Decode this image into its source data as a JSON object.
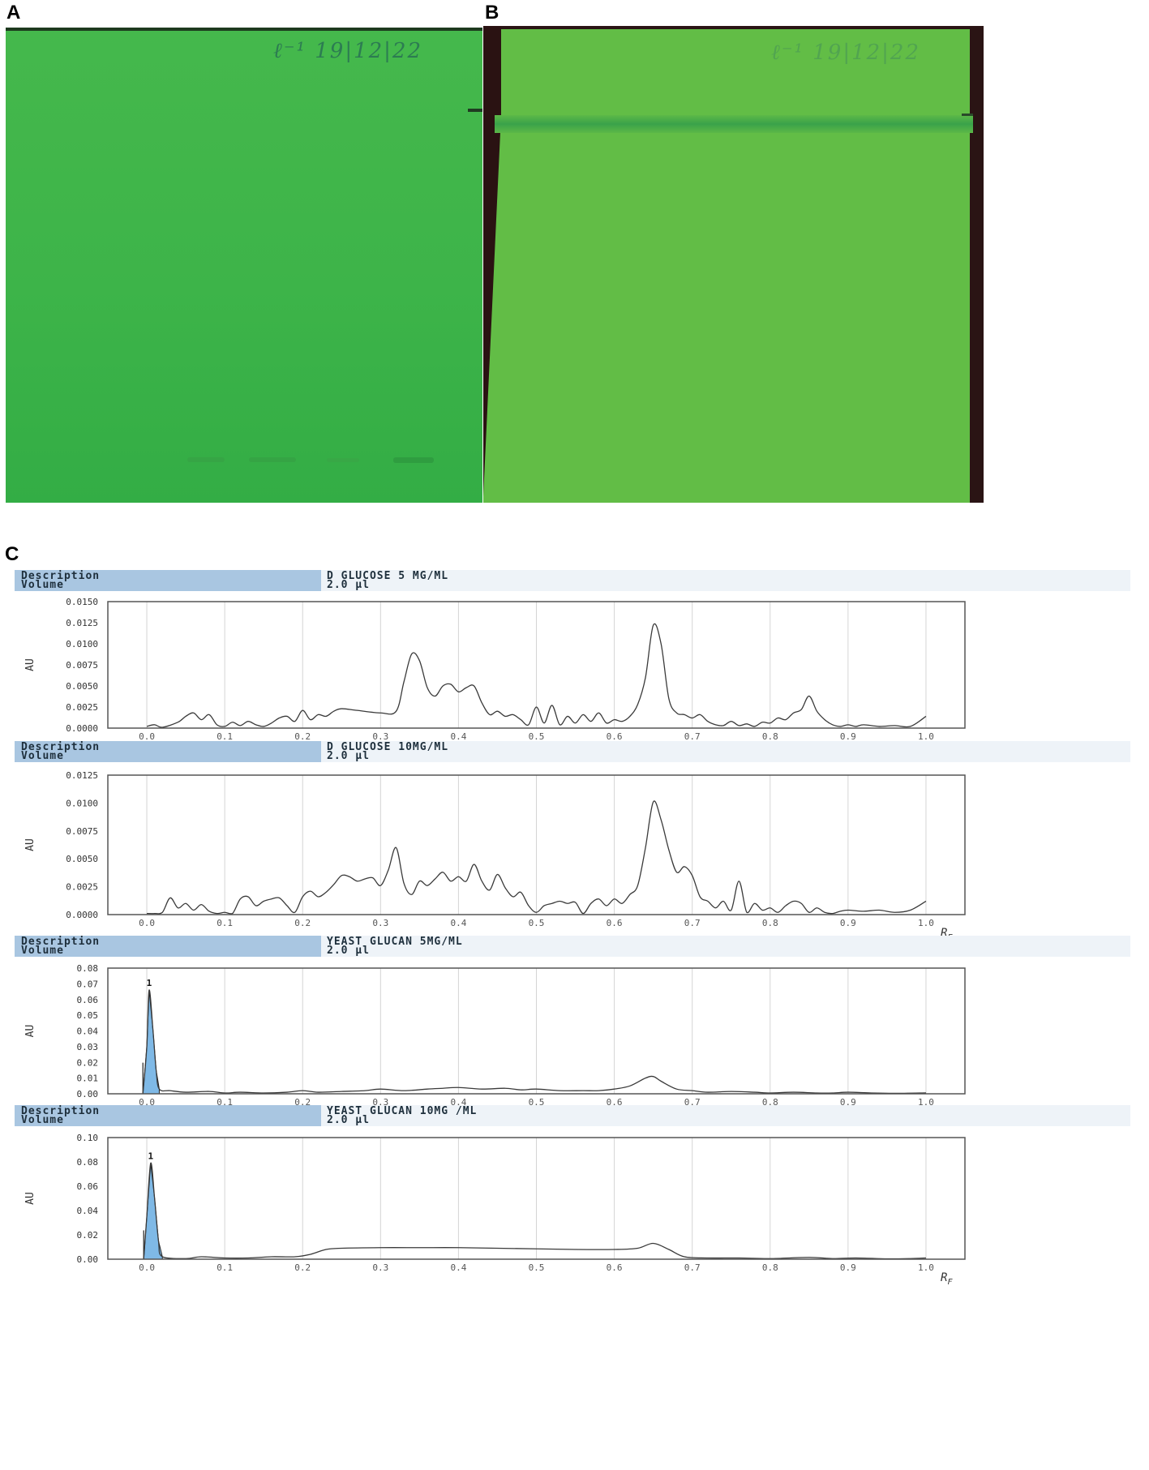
{
  "panels": {
    "a": {
      "label": "A",
      "note": "ℓ⁻¹ 19|12|22"
    },
    "b": {
      "label": "B",
      "note": "ℓ⁻¹ 19|12|22"
    },
    "c": {
      "label": "C"
    }
  },
  "colors": {
    "plate_a": "#3cb44a",
    "plate_b": "#62bd46",
    "peak_fill": "#7fb9e6",
    "trace": "#3a3a3a"
  },
  "chart_data": [
    {
      "type": "line",
      "description_key": "Description",
      "volume_key": "Volume",
      "description": "D GLUCOSE 5 MG/ML",
      "volume": "2.0 µl",
      "ylabel": "AU",
      "xlabel": "R",
      "ylim": [
        0,
        0.015
      ],
      "yticks": [
        "0.0000",
        "0.0025",
        "0.0050",
        "0.0075",
        "0.0100",
        "0.0125",
        "0.0150"
      ],
      "xticks": [
        "0.0",
        "0.1",
        "0.2",
        "0.3",
        "0.4",
        "0.5",
        "0.6",
        "0.7",
        "0.8",
        "0.9",
        "1.0"
      ],
      "xlim": [
        -0.05,
        1.05
      ],
      "points": [
        [
          0.0,
          0.0002
        ],
        [
          0.01,
          0.0004
        ],
        [
          0.02,
          0.0001
        ],
        [
          0.04,
          0.0007
        ],
        [
          0.05,
          0.0014
        ],
        [
          0.06,
          0.0018
        ],
        [
          0.07,
          0.001
        ],
        [
          0.08,
          0.0016
        ],
        [
          0.09,
          0.0004
        ],
        [
          0.1,
          0.0002
        ],
        [
          0.11,
          0.0007
        ],
        [
          0.12,
          0.0003
        ],
        [
          0.13,
          0.0008
        ],
        [
          0.14,
          0.0004
        ],
        [
          0.15,
          0.0002
        ],
        [
          0.16,
          0.0006
        ],
        [
          0.17,
          0.0012
        ],
        [
          0.18,
          0.0014
        ],
        [
          0.19,
          0.0008
        ],
        [
          0.2,
          0.0021
        ],
        [
          0.21,
          0.001
        ],
        [
          0.22,
          0.0016
        ],
        [
          0.23,
          0.0014
        ],
        [
          0.24,
          0.002
        ],
        [
          0.25,
          0.0023
        ],
        [
          0.27,
          0.0021
        ],
        [
          0.3,
          0.0018
        ],
        [
          0.32,
          0.002
        ],
        [
          0.33,
          0.0055
        ],
        [
          0.34,
          0.0088
        ],
        [
          0.35,
          0.008
        ],
        [
          0.36,
          0.0048
        ],
        [
          0.37,
          0.0038
        ],
        [
          0.38,
          0.005
        ],
        [
          0.39,
          0.0052
        ],
        [
          0.4,
          0.0043
        ],
        [
          0.41,
          0.0048
        ],
        [
          0.42,
          0.005
        ],
        [
          0.43,
          0.003
        ],
        [
          0.44,
          0.0016
        ],
        [
          0.45,
          0.002
        ],
        [
          0.46,
          0.0014
        ],
        [
          0.47,
          0.0016
        ],
        [
          0.48,
          0.001
        ],
        [
          0.49,
          0.0004
        ],
        [
          0.5,
          0.0025
        ],
        [
          0.51,
          0.0006
        ],
        [
          0.52,
          0.0027
        ],
        [
          0.53,
          0.0004
        ],
        [
          0.54,
          0.0014
        ],
        [
          0.55,
          0.0006
        ],
        [
          0.56,
          0.0016
        ],
        [
          0.57,
          0.0008
        ],
        [
          0.58,
          0.0018
        ],
        [
          0.59,
          0.0006
        ],
        [
          0.6,
          0.001
        ],
        [
          0.61,
          0.0008
        ],
        [
          0.62,
          0.0014
        ],
        [
          0.63,
          0.0028
        ],
        [
          0.64,
          0.006
        ],
        [
          0.65,
          0.0122
        ],
        [
          0.66,
          0.01
        ],
        [
          0.67,
          0.0035
        ],
        [
          0.68,
          0.0018
        ],
        [
          0.69,
          0.0016
        ],
        [
          0.7,
          0.0012
        ],
        [
          0.71,
          0.0016
        ],
        [
          0.72,
          0.0008
        ],
        [
          0.73,
          0.0004
        ],
        [
          0.74,
          0.0003
        ],
        [
          0.75,
          0.0008
        ],
        [
          0.76,
          0.0003
        ],
        [
          0.77,
          0.0005
        ],
        [
          0.78,
          0.0002
        ],
        [
          0.79,
          0.0007
        ],
        [
          0.8,
          0.0006
        ],
        [
          0.81,
          0.0012
        ],
        [
          0.82,
          0.001
        ],
        [
          0.83,
          0.0018
        ],
        [
          0.84,
          0.0022
        ],
        [
          0.85,
          0.0038
        ],
        [
          0.86,
          0.002
        ],
        [
          0.87,
          0.001
        ],
        [
          0.88,
          0.0004
        ],
        [
          0.89,
          0.0002
        ],
        [
          0.9,
          0.0004
        ],
        [
          0.91,
          0.0002
        ],
        [
          0.92,
          0.0004
        ],
        [
          0.94,
          0.0002
        ],
        [
          0.96,
          0.0003
        ],
        [
          0.98,
          0.0002
        ],
        [
          1.0,
          0.0014
        ]
      ]
    },
    {
      "type": "line",
      "description_key": "Description",
      "volume_key": "Volume",
      "description": "D GLUCOSE 10MG/ML",
      "volume": "2.0 µl",
      "ylabel": "AU",
      "xlabel": "RF",
      "ylim": [
        0,
        0.0125
      ],
      "yticks": [
        "0.0000",
        "0.0025",
        "0.0050",
        "0.0075",
        "0.0100",
        "0.0125"
      ],
      "xticks": [
        "0.0",
        "0.1",
        "0.2",
        "0.3",
        "0.4",
        "0.5",
        "0.6",
        "0.7",
        "0.8",
        "0.9",
        "1.0"
      ],
      "xlim": [
        -0.05,
        1.05
      ],
      "points": [
        [
          0.0,
          0.0001
        ],
        [
          0.01,
          0.0001
        ],
        [
          0.02,
          0.0002
        ],
        [
          0.03,
          0.0015
        ],
        [
          0.04,
          0.0006
        ],
        [
          0.05,
          0.001
        ],
        [
          0.06,
          0.0004
        ],
        [
          0.07,
          0.0009
        ],
        [
          0.08,
          0.0003
        ],
        [
          0.09,
          0.0001
        ],
        [
          0.1,
          0.0002
        ],
        [
          0.11,
          0.0001
        ],
        [
          0.12,
          0.0014
        ],
        [
          0.13,
          0.0016
        ],
        [
          0.14,
          0.0008
        ],
        [
          0.15,
          0.0012
        ],
        [
          0.16,
          0.0014
        ],
        [
          0.17,
          0.0015
        ],
        [
          0.18,
          0.0008
        ],
        [
          0.19,
          0.0002
        ],
        [
          0.2,
          0.0016
        ],
        [
          0.21,
          0.0021
        ],
        [
          0.22,
          0.0016
        ],
        [
          0.23,
          0.002
        ],
        [
          0.24,
          0.0027
        ],
        [
          0.25,
          0.0035
        ],
        [
          0.26,
          0.0034
        ],
        [
          0.27,
          0.003
        ],
        [
          0.28,
          0.0032
        ],
        [
          0.29,
          0.0033
        ],
        [
          0.3,
          0.0026
        ],
        [
          0.31,
          0.004
        ],
        [
          0.32,
          0.006
        ],
        [
          0.33,
          0.0028
        ],
        [
          0.34,
          0.0018
        ],
        [
          0.35,
          0.003
        ],
        [
          0.36,
          0.0026
        ],
        [
          0.37,
          0.0032
        ],
        [
          0.38,
          0.0038
        ],
        [
          0.39,
          0.003
        ],
        [
          0.4,
          0.0034
        ],
        [
          0.41,
          0.003
        ],
        [
          0.42,
          0.0045
        ],
        [
          0.43,
          0.003
        ],
        [
          0.44,
          0.0022
        ],
        [
          0.45,
          0.0036
        ],
        [
          0.46,
          0.0024
        ],
        [
          0.47,
          0.0016
        ],
        [
          0.48,
          0.002
        ],
        [
          0.49,
          0.0008
        ],
        [
          0.5,
          0.0002
        ],
        [
          0.51,
          0.0008
        ],
        [
          0.52,
          0.001
        ],
        [
          0.53,
          0.0012
        ],
        [
          0.54,
          0.001
        ],
        [
          0.55,
          0.0011
        ],
        [
          0.56,
          0.0001
        ],
        [
          0.57,
          0.001
        ],
        [
          0.58,
          0.0014
        ],
        [
          0.59,
          0.0008
        ],
        [
          0.6,
          0.0014
        ],
        [
          0.61,
          0.001
        ],
        [
          0.62,
          0.0018
        ],
        [
          0.63,
          0.0026
        ],
        [
          0.64,
          0.006
        ],
        [
          0.65,
          0.0101
        ],
        [
          0.66,
          0.0085
        ],
        [
          0.67,
          0.0058
        ],
        [
          0.68,
          0.0038
        ],
        [
          0.69,
          0.0043
        ],
        [
          0.7,
          0.0035
        ],
        [
          0.71,
          0.0016
        ],
        [
          0.72,
          0.0012
        ],
        [
          0.73,
          0.0006
        ],
        [
          0.74,
          0.0012
        ],
        [
          0.75,
          0.0004
        ],
        [
          0.76,
          0.003
        ],
        [
          0.77,
          0.0002
        ],
        [
          0.78,
          0.001
        ],
        [
          0.79,
          0.0004
        ],
        [
          0.8,
          0.0006
        ],
        [
          0.81,
          0.0002
        ],
        [
          0.82,
          0.0008
        ],
        [
          0.83,
          0.0012
        ],
        [
          0.84,
          0.001
        ],
        [
          0.85,
          0.0002
        ],
        [
          0.86,
          0.0006
        ],
        [
          0.87,
          0.0002
        ],
        [
          0.88,
          0.0001
        ],
        [
          0.89,
          0.0003
        ],
        [
          0.9,
          0.0004
        ],
        [
          0.92,
          0.0003
        ],
        [
          0.94,
          0.0004
        ],
        [
          0.96,
          0.0002
        ],
        [
          0.98,
          0.0004
        ],
        [
          1.0,
          0.0012
        ]
      ]
    },
    {
      "type": "line",
      "description_key": "Description",
      "volume_key": "Volume",
      "description": "YEAST GLUCAN 5MG/ML",
      "volume": "2.0 µl",
      "ylabel": "AU",
      "xlabel": "R",
      "ylim": [
        0,
        0.08
      ],
      "yticks": [
        "0.00",
        "0.01",
        "0.02",
        "0.03",
        "0.04",
        "0.05",
        "0.06",
        "0.07",
        "0.08"
      ],
      "xticks": [
        "0.0",
        "0.1",
        "0.2",
        "0.3",
        "0.4",
        "0.5",
        "0.6",
        "0.7",
        "0.8",
        "0.9",
        "1.0"
      ],
      "xlim": [
        -0.05,
        1.05
      ],
      "peak_label": "1",
      "peak": {
        "x": 0.003,
        "y": 0.066,
        "from": -0.005,
        "to": 0.016
      },
      "points": [
        [
          -0.005,
          0.0
        ],
        [
          0.0,
          0.03
        ],
        [
          0.003,
          0.066
        ],
        [
          0.008,
          0.04
        ],
        [
          0.012,
          0.015
        ],
        [
          0.016,
          0.003
        ],
        [
          0.03,
          0.002
        ],
        [
          0.05,
          0.001
        ],
        [
          0.08,
          0.0015
        ],
        [
          0.1,
          0.0005
        ],
        [
          0.12,
          0.001
        ],
        [
          0.15,
          0.0005
        ],
        [
          0.18,
          0.001
        ],
        [
          0.2,
          0.002
        ],
        [
          0.22,
          0.001
        ],
        [
          0.25,
          0.0015
        ],
        [
          0.28,
          0.002
        ],
        [
          0.3,
          0.003
        ],
        [
          0.33,
          0.002
        ],
        [
          0.36,
          0.003
        ],
        [
          0.38,
          0.0035
        ],
        [
          0.4,
          0.004
        ],
        [
          0.43,
          0.003
        ],
        [
          0.46,
          0.0035
        ],
        [
          0.48,
          0.0025
        ],
        [
          0.5,
          0.003
        ],
        [
          0.53,
          0.002
        ],
        [
          0.56,
          0.002
        ],
        [
          0.58,
          0.002
        ],
        [
          0.6,
          0.003
        ],
        [
          0.62,
          0.005
        ],
        [
          0.64,
          0.01
        ],
        [
          0.65,
          0.011
        ],
        [
          0.66,
          0.008
        ],
        [
          0.68,
          0.003
        ],
        [
          0.7,
          0.002
        ],
        [
          0.72,
          0.001
        ],
        [
          0.75,
          0.0015
        ],
        [
          0.78,
          0.001
        ],
        [
          0.8,
          0.0005
        ],
        [
          0.83,
          0.001
        ],
        [
          0.86,
          0.0005
        ],
        [
          0.88,
          0.0005
        ],
        [
          0.9,
          0.001
        ],
        [
          0.93,
          0.0005
        ],
        [
          0.96,
          0.0003
        ],
        [
          1.0,
          0.0006
        ]
      ]
    },
    {
      "type": "line",
      "description_key": "Description",
      "volume_key": "Volume",
      "description": "YEAST GLUCAN 10MG /ML",
      "volume": "2.0 µl",
      "ylabel": "AU",
      "xlabel": "RF",
      "ylim": [
        0,
        0.1
      ],
      "yticks": [
        "0.00",
        "0.02",
        "0.04",
        "0.06",
        "0.08",
        "0.10"
      ],
      "xticks": [
        "0.0",
        "0.1",
        "0.2",
        "0.3",
        "0.4",
        "0.5",
        "0.6",
        "0.7",
        "0.8",
        "0.9",
        "1.0"
      ],
      "xlim": [
        -0.05,
        1.05
      ],
      "peak_label": "1",
      "peak": {
        "x": 0.005,
        "y": 0.079,
        "from": -0.004,
        "to": 0.02
      },
      "points": [
        [
          -0.004,
          0.0
        ],
        [
          0.0,
          0.035
        ],
        [
          0.005,
          0.079
        ],
        [
          0.01,
          0.05
        ],
        [
          0.015,
          0.015
        ],
        [
          0.02,
          0.002
        ],
        [
          0.05,
          0.0005
        ],
        [
          0.07,
          0.002
        ],
        [
          0.1,
          0.001
        ],
        [
          0.13,
          0.001
        ],
        [
          0.16,
          0.002
        ],
        [
          0.19,
          0.002
        ],
        [
          0.21,
          0.004
        ],
        [
          0.23,
          0.008
        ],
        [
          0.25,
          0.009
        ],
        [
          0.3,
          0.0095
        ],
        [
          0.35,
          0.0095
        ],
        [
          0.4,
          0.0095
        ],
        [
          0.45,
          0.009
        ],
        [
          0.5,
          0.0085
        ],
        [
          0.55,
          0.008
        ],
        [
          0.6,
          0.008
        ],
        [
          0.63,
          0.009
        ],
        [
          0.65,
          0.013
        ],
        [
          0.67,
          0.008
        ],
        [
          0.69,
          0.002
        ],
        [
          0.72,
          0.001
        ],
        [
          0.76,
          0.001
        ],
        [
          0.8,
          0.0005
        ],
        [
          0.85,
          0.0015
        ],
        [
          0.88,
          0.0005
        ],
        [
          0.91,
          0.001
        ],
        [
          0.95,
          0.0003
        ],
        [
          0.98,
          0.0005
        ],
        [
          1.0,
          0.001
        ]
      ]
    }
  ]
}
